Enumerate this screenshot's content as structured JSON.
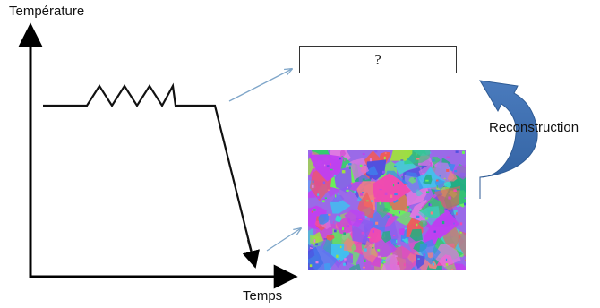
{
  "diagram": {
    "y_axis_label": "Température",
    "x_axis_label": "Temps",
    "unknown_box_label": "?",
    "reconstruction_label": "Reconstruction",
    "colors": {
      "axis": "#000000",
      "curve": "#111111",
      "pointer_arrows": "#7fa6c9",
      "reconstruction_arrow": "#3a6aa6",
      "box_border": "#333333"
    }
  }
}
